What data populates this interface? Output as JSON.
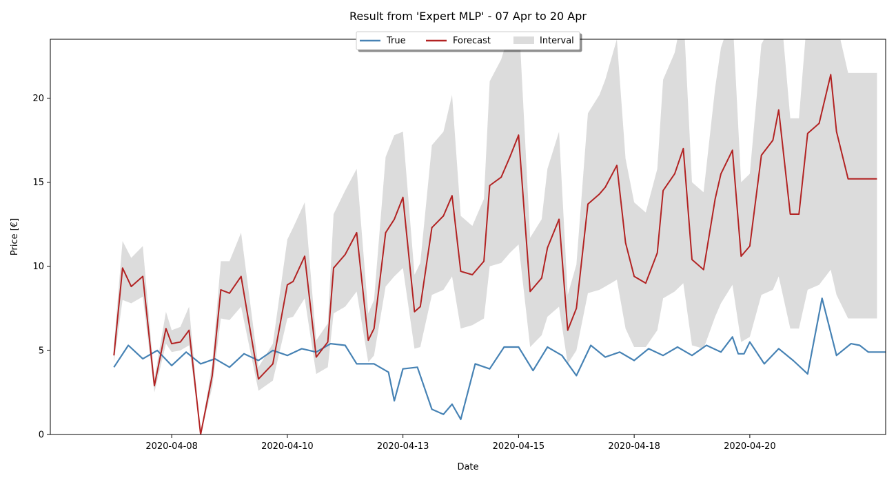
{
  "chart_data": {
    "type": "line",
    "title": "Result from 'Expert MLP' - 07 Apr to 20 Apr",
    "xlabel": "Date",
    "ylabel": "Price [€]",
    "ylim": [
      0,
      23.5
    ],
    "yticks": [
      0,
      5,
      10,
      15,
      20
    ],
    "xlim": [
      -1.1,
      13.35
    ],
    "xticks": [
      {
        "label": "2020-04-08",
        "day": 1
      },
      {
        "label": "2020-04-10",
        "day": 3
      },
      {
        "label": "2020-04-13",
        "day": 5
      },
      {
        "label": "2020-04-15",
        "day": 7
      },
      {
        "label": "2020-04-18",
        "day": 9
      },
      {
        "label": "2020-04-20",
        "day": 11
      }
    ],
    "legend": {
      "position": "top-center",
      "entries": [
        "True",
        "Forecast",
        "Interval"
      ]
    },
    "grid": false,
    "colors": {
      "true": "#4682b4",
      "forecast": "#b22222",
      "interval": "#dcdcdc"
    },
    "series": [
      {
        "name": "True",
        "x": [
          0.0,
          0.25,
          0.5,
          0.75,
          1.0,
          1.25,
          1.5,
          1.75,
          2.0,
          2.25,
          2.5,
          2.75,
          3.0,
          3.25,
          3.5,
          3.75,
          4.0,
          4.2,
          4.5,
          4.75,
          4.85,
          5.0,
          5.25,
          5.5,
          5.7,
          5.85,
          6.0,
          6.25,
          6.5,
          6.75,
          7.0,
          7.25,
          7.5,
          7.75,
          8.0,
          8.25,
          8.5,
          8.75,
          9.0,
          9.25,
          9.5,
          9.75,
          10.0,
          10.25,
          10.5,
          10.7,
          10.8,
          10.9,
          11.0,
          11.25,
          11.5,
          11.75,
          12.0,
          12.25,
          12.5,
          12.75,
          12.9,
          13.05,
          13.2,
          13.35,
          13.5,
          13.65,
          13.75,
          13.85,
          14.0
        ],
        "y": [
          4.0,
          5.3,
          4.5,
          5.0,
          4.1,
          4.9,
          4.2,
          4.5,
          4.0,
          4.8,
          4.4,
          5.0,
          4.7,
          5.1,
          4.9,
          5.4,
          5.3,
          4.2,
          4.2,
          3.7,
          2.0,
          3.9,
          4.0,
          1.5,
          1.2,
          1.8,
          0.9,
          4.2,
          3.9,
          5.2,
          5.2,
          3.8,
          5.2,
          4.7,
          3.5,
          5.3,
          4.6,
          4.9,
          4.4,
          5.1,
          4.7,
          5.2,
          4.7,
          5.3,
          4.9,
          5.8,
          4.8,
          4.8,
          5.5,
          4.2,
          5.1,
          4.4,
          3.6,
          8.1,
          4.7,
          5.4,
          5.3,
          4.9,
          4.9,
          4.9,
          4.9,
          4.9,
          4.9,
          4.9,
          4.9
        ]
      },
      {
        "name": "Forecast",
        "x": [
          0.0,
          0.15,
          0.3,
          0.5,
          0.7,
          0.9,
          1.0,
          1.15,
          1.3,
          1.5,
          1.7,
          1.85,
          2.0,
          2.2,
          2.5,
          2.75,
          3.0,
          3.1,
          3.3,
          3.5,
          3.7,
          3.8,
          4.0,
          4.2,
          4.4,
          4.5,
          4.7,
          4.85,
          5.0,
          5.2,
          5.3,
          5.5,
          5.7,
          5.85,
          6.0,
          6.2,
          6.4,
          6.5,
          6.7,
          6.85,
          7.0,
          7.2,
          7.4,
          7.5,
          7.7,
          7.85,
          8.0,
          8.2,
          8.4,
          8.5,
          8.7,
          8.85,
          9.0,
          9.2,
          9.4,
          9.5,
          9.7,
          9.85,
          10.0,
          10.2,
          10.4,
          10.5,
          10.7,
          10.85,
          11.0,
          11.2,
          11.4,
          11.5,
          11.7,
          11.85,
          12.0,
          12.2,
          12.4,
          12.5,
          12.7,
          12.85,
          13.0,
          13.2
        ],
        "y": [
          4.7,
          9.9,
          8.8,
          9.4,
          2.9,
          6.3,
          5.4,
          5.5,
          6.2,
          0.0,
          3.5,
          8.6,
          8.4,
          9.4,
          3.3,
          4.2,
          8.9,
          9.1,
          10.6,
          4.6,
          5.5,
          9.9,
          10.7,
          12.0,
          5.6,
          6.3,
          12.0,
          12.8,
          14.1,
          7.3,
          7.6,
          12.3,
          13.0,
          14.2,
          9.7,
          9.5,
          10.3,
          14.8,
          15.3,
          16.5,
          17.8,
          8.5,
          9.3,
          11.1,
          12.8,
          6.2,
          7.5,
          13.7,
          14.3,
          14.7,
          16.0,
          11.4,
          9.4,
          9.0,
          10.8,
          14.5,
          15.5,
          17.0,
          10.4,
          9.8,
          14.0,
          15.5,
          16.9,
          10.6,
          11.2,
          16.6,
          17.5,
          19.3,
          13.1,
          13.1,
          17.9,
          18.5,
          21.4,
          18.0,
          15.2,
          15.2,
          15.2,
          15.2
        ]
      }
    ],
    "interval": {
      "name": "Interval",
      "x": [
        0.0,
        0.15,
        0.3,
        0.5,
        0.7,
        0.9,
        1.0,
        1.15,
        1.3,
        1.5,
        1.7,
        1.85,
        2.0,
        2.2,
        2.5,
        2.75,
        3.0,
        3.1,
        3.3,
        3.5,
        3.7,
        3.8,
        4.0,
        4.2,
        4.4,
        4.5,
        4.7,
        4.85,
        5.0,
        5.2,
        5.3,
        5.5,
        5.7,
        5.85,
        6.0,
        6.2,
        6.4,
        6.5,
        6.7,
        6.85,
        7.0,
        7.2,
        7.4,
        7.5,
        7.7,
        7.85,
        8.0,
        8.2,
        8.4,
        8.5,
        8.7,
        8.85,
        9.0,
        9.2,
        9.4,
        9.5,
        9.7,
        9.85,
        10.0,
        10.2,
        10.4,
        10.5,
        10.7,
        10.85,
        11.0,
        11.2,
        11.4,
        11.5,
        11.7,
        11.85,
        12.0,
        12.2,
        12.4,
        12.5,
        12.7,
        12.85,
        13.0,
        13.2
      ],
      "lower": [
        4.3,
        8.0,
        7.8,
        8.2,
        2.5,
        5.4,
        4.9,
        5.0,
        5.3,
        0.0,
        2.8,
        6.9,
        6.8,
        7.6,
        2.6,
        3.2,
        6.9,
        7.0,
        8.1,
        3.6,
        4.0,
        7.2,
        7.6,
        8.5,
        4.3,
        4.7,
        8.8,
        9.4,
        9.9,
        5.1,
        5.2,
        8.3,
        8.6,
        9.4,
        6.3,
        6.5,
        6.9,
        10.0,
        10.2,
        10.8,
        11.3,
        5.2,
        5.9,
        7.0,
        7.6,
        4.2,
        5.0,
        8.4,
        8.6,
        8.8,
        9.2,
        6.3,
        5.2,
        5.2,
        6.2,
        8.1,
        8.5,
        9.0,
        5.3,
        5.1,
        7.0,
        7.8,
        8.9,
        5.5,
        5.8,
        8.3,
        8.6,
        9.4,
        6.3,
        6.3,
        8.6,
        8.9,
        9.8,
        8.3,
        6.9,
        6.9,
        6.9,
        6.9
      ],
      "upper": [
        5.3,
        11.5,
        10.5,
        11.2,
        3.3,
        7.3,
        6.2,
        6.4,
        7.6,
        0.0,
        4.2,
        10.3,
        10.3,
        12.0,
        4.0,
        5.4,
        11.6,
        12.3,
        13.8,
        5.6,
        6.6,
        13.1,
        14.5,
        15.8,
        7.2,
        8.0,
        16.5,
        17.8,
        18.0,
        9.5,
        10.2,
        17.2,
        18.0,
        20.2,
        13.0,
        12.4,
        14.0,
        21.0,
        22.3,
        24.0,
        25.0,
        11.7,
        12.8,
        15.8,
        18.0,
        8.3,
        10.1,
        19.1,
        20.2,
        21.1,
        23.5,
        16.4,
        13.8,
        13.2,
        15.8,
        21.1,
        22.7,
        25.3,
        15.0,
        14.4,
        20.6,
        23.0,
        25.0,
        15.0,
        15.5,
        23.2,
        24.5,
        26.7,
        18.8,
        18.8,
        25.2,
        26.0,
        29.0,
        24.5,
        21.5,
        21.5,
        21.5,
        21.5
      ]
    }
  }
}
